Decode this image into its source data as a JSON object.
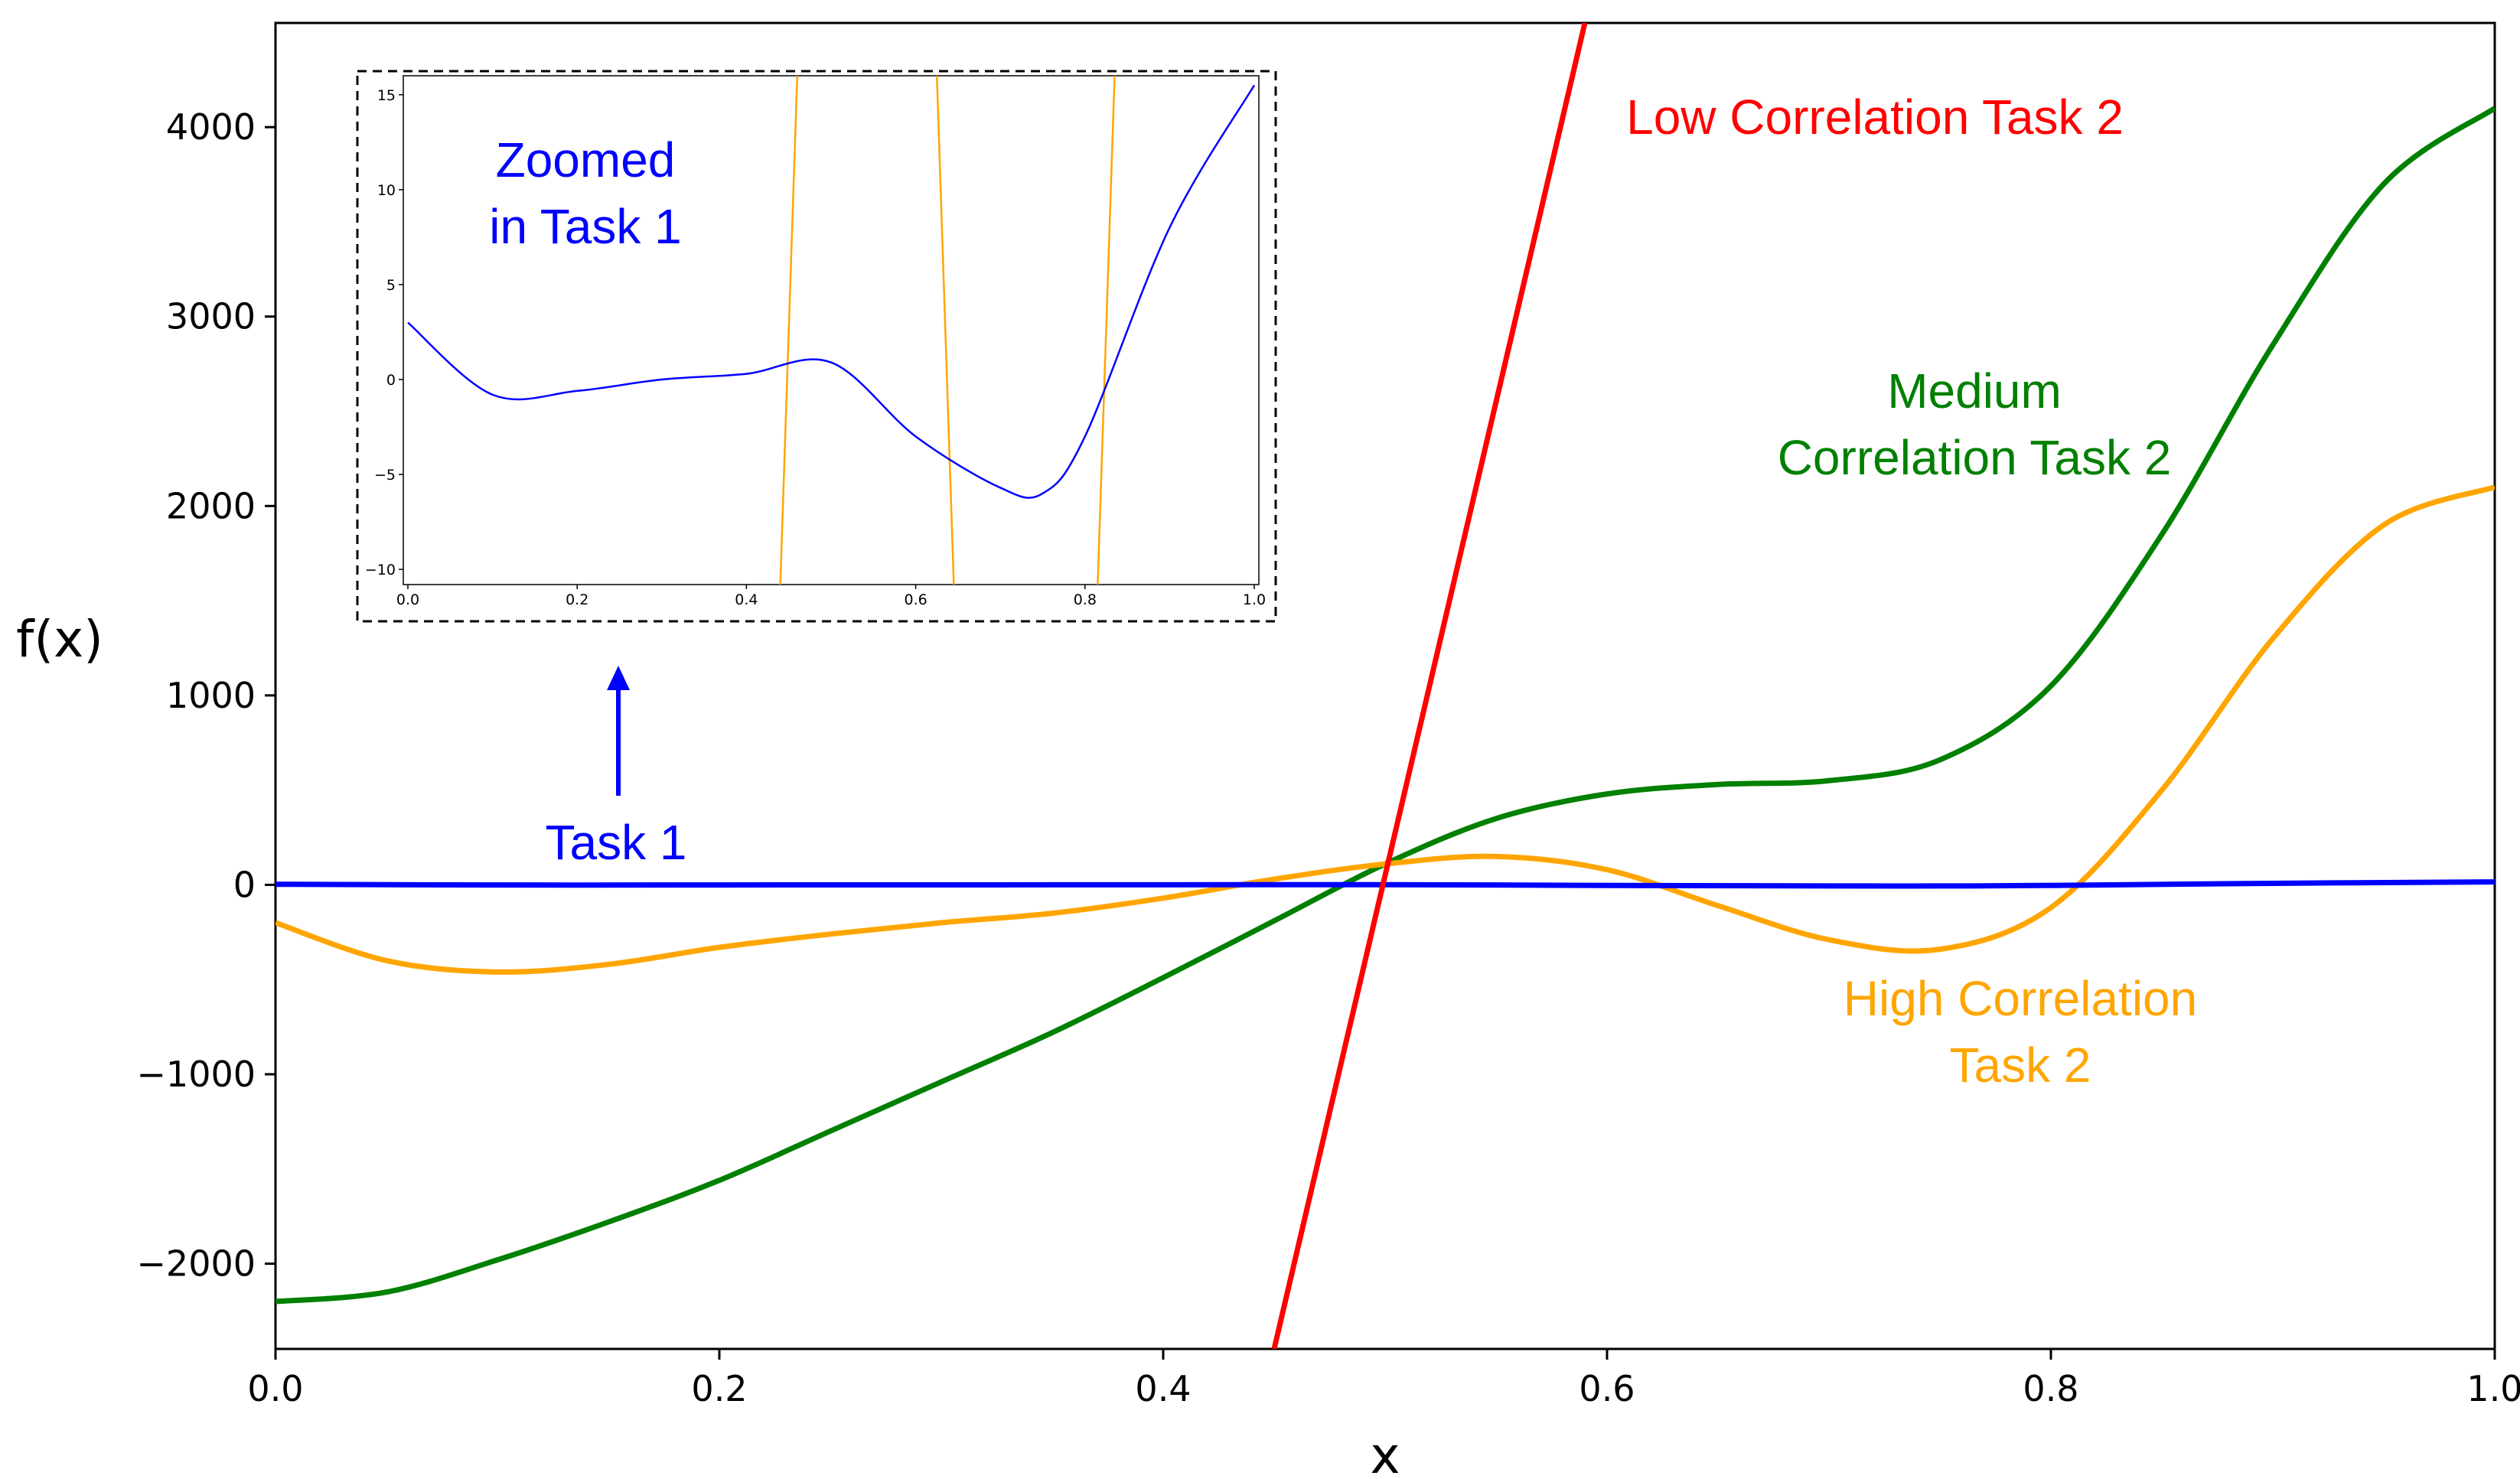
{
  "chart_data": {
    "type": "line",
    "xlabel": "x",
    "ylabel": "f(x)",
    "xlim": [
      0.0,
      1.0
    ],
    "ylim": [
      -2450,
      4550
    ],
    "xticks": [
      {
        "value": 0.0,
        "label": "0.0"
      },
      {
        "value": 0.2,
        "label": "0.2"
      },
      {
        "value": 0.4,
        "label": "0.4"
      },
      {
        "value": 0.6,
        "label": "0.6"
      },
      {
        "value": 0.8,
        "label": "0.8"
      },
      {
        "value": 1.0,
        "label": "1.0"
      }
    ],
    "yticks": [
      {
        "value": -2000,
        "label": "−2000"
      },
      {
        "value": -1000,
        "label": "−1000"
      },
      {
        "value": 0,
        "label": "0"
      },
      {
        "value": 1000,
        "label": "1000"
      },
      {
        "value": 2000,
        "label": "2000"
      },
      {
        "value": 3000,
        "label": "3000"
      },
      {
        "value": 4000,
        "label": "4000"
      }
    ],
    "series": [
      {
        "name": "Task 1",
        "color": "#0000ff",
        "x": [
          0.0,
          0.1,
          0.2,
          0.3,
          0.4,
          0.5,
          0.6,
          0.7,
          0.75,
          0.8,
          0.9,
          1.0
        ],
        "y": [
          3,
          -0.8,
          -0.6,
          0,
          0.3,
          0.9,
          -3,
          -5.7,
          -6,
          -3,
          8,
          15.5
        ]
      },
      {
        "name": "Low Correlation Task 2",
        "color": "#ff0000",
        "x": [
          0.45,
          0.5,
          0.59
        ],
        "y": [
          -2450,
          0,
          4550
        ]
      },
      {
        "name": "Medium Correlation Task 2",
        "color": "#008000",
        "x": [
          0.0,
          0.05,
          0.1,
          0.15,
          0.2,
          0.25,
          0.3,
          0.35,
          0.4,
          0.45,
          0.5,
          0.55,
          0.6,
          0.65,
          0.7,
          0.75,
          0.8,
          0.85,
          0.9,
          0.95,
          1.0
        ],
        "y": [
          -2200,
          -2150,
          -1980,
          -1780,
          -1560,
          -1300,
          -1040,
          -780,
          -490,
          -190,
          110,
          350,
          480,
          530,
          550,
          660,
          1050,
          1850,
          2850,
          3700,
          4100
        ]
      },
      {
        "name": "High Correlation Task 2",
        "color": "#ffa500",
        "x": [
          0.0,
          0.05,
          0.1,
          0.15,
          0.2,
          0.25,
          0.3,
          0.35,
          0.4,
          0.45,
          0.5,
          0.55,
          0.6,
          0.65,
          0.7,
          0.75,
          0.8,
          0.85,
          0.9,
          0.95,
          1.0
        ],
        "y": [
          -200,
          -400,
          -460,
          -420,
          -330,
          -260,
          -200,
          -150,
          -70,
          30,
          110,
          150,
          80,
          -110,
          -290,
          -340,
          -120,
          500,
          1300,
          1900,
          2100
        ]
      }
    ],
    "annotations": {
      "low": "Low Correlation Task 2",
      "medium_line1": "Medium",
      "medium_line2": "Correlation Task 2",
      "high_line1": "High Correlation",
      "high_line2": "Task 2",
      "task1": "Task 1",
      "zoom_line1": "Zoomed",
      "zoom_line2": "in Task 1"
    },
    "inset": {
      "xlim": [
        0.0,
        1.0
      ],
      "ylim": [
        -10.8,
        16
      ],
      "xticks": [
        {
          "value": 0.0,
          "label": "0.0"
        },
        {
          "value": 0.2,
          "label": "0.2"
        },
        {
          "value": 0.4,
          "label": "0.4"
        },
        {
          "value": 0.6,
          "label": "0.6"
        },
        {
          "value": 0.8,
          "label": "0.8"
        },
        {
          "value": 1.0,
          "label": "1.0"
        }
      ],
      "yticks": [
        {
          "value": -10,
          "label": "−10"
        },
        {
          "value": -5,
          "label": "−5"
        },
        {
          "value": 0,
          "label": "0"
        },
        {
          "value": 5,
          "label": "5"
        },
        {
          "value": 10,
          "label": "10"
        },
        {
          "value": 15,
          "label": "15"
        }
      ],
      "series_name": "Task 1",
      "crossings": [
        0.45,
        0.635,
        0.825
      ]
    },
    "colors": {
      "task1": "#0000ff",
      "low": "#ff0000",
      "medium": "#008000",
      "high": "#ffa500"
    }
  }
}
